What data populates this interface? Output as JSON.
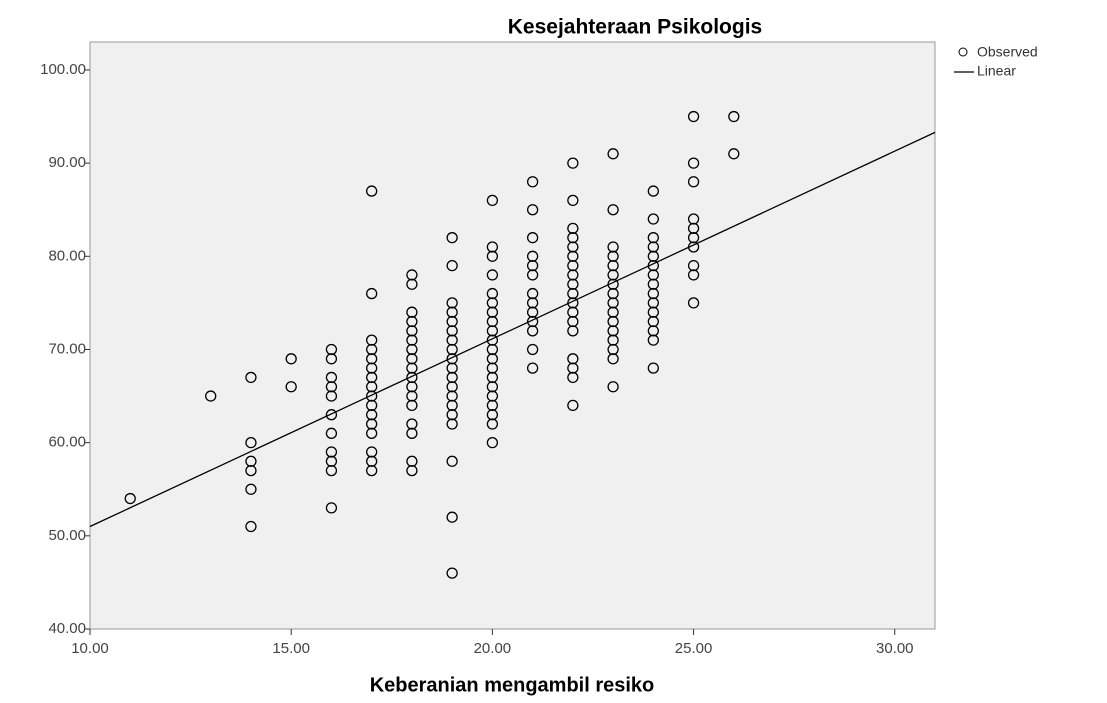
{
  "chart_data": {
    "type": "scatter",
    "title": "Kesejahteraan Psikologis",
    "x_label": "Keberanian mengambil resiko",
    "xlim": [
      10,
      31
    ],
    "ylim": [
      40,
      103
    ],
    "xticks": [
      {
        "value": 10,
        "label": "10.00"
      },
      {
        "value": 15,
        "label": "15.00"
      },
      {
        "value": 20,
        "label": "20.00"
      },
      {
        "value": 25,
        "label": "25.00"
      },
      {
        "value": 30,
        "label": "30.00"
      }
    ],
    "yticks": [
      {
        "value": 40,
        "label": "40.00"
      },
      {
        "value": 50,
        "label": "50.00"
      },
      {
        "value": 60,
        "label": "60.00"
      },
      {
        "value": 70,
        "label": "70.00"
      },
      {
        "value": 80,
        "label": "80.00"
      },
      {
        "value": 90,
        "label": "90.00"
      },
      {
        "value": 100,
        "label": "100.00"
      }
    ],
    "legend": "top-right",
    "series": [
      {
        "name": "Observed",
        "color": "#000000",
        "x": [
          11,
          13,
          14,
          14,
          14,
          14,
          14,
          14,
          15,
          15,
          16,
          16,
          16,
          16,
          16,
          16,
          16,
          16,
          16,
          16,
          16,
          17,
          17,
          17,
          17,
          17,
          17,
          17,
          17,
          17,
          17,
          17,
          17,
          17,
          17,
          17,
          17,
          18,
          18,
          18,
          18,
          18,
          18,
          18,
          18,
          18,
          18,
          18,
          18,
          18,
          18,
          18,
          18,
          18,
          19,
          19,
          19,
          19,
          19,
          19,
          19,
          19,
          19,
          19,
          19,
          19,
          19,
          19,
          19,
          19,
          19,
          19,
          19,
          20,
          20,
          20,
          20,
          20,
          20,
          20,
          20,
          20,
          20,
          20,
          20,
          20,
          20,
          20,
          20,
          20,
          20,
          20,
          20,
          21,
          21,
          21,
          21,
          21,
          21,
          21,
          21,
          21,
          21,
          21,
          21,
          21,
          22,
          22,
          22,
          22,
          22,
          22,
          22,
          22,
          22,
          22,
          22,
          22,
          22,
          22,
          22,
          22,
          22,
          22,
          23,
          23,
          23,
          23,
          23,
          23,
          23,
          23,
          23,
          23,
          23,
          23,
          23,
          23,
          23,
          23,
          24,
          24,
          24,
          24,
          24,
          24,
          24,
          24,
          24,
          24,
          24,
          24,
          24,
          24,
          24,
          25,
          25,
          25,
          25,
          25,
          25,
          25,
          25,
          25,
          25,
          26,
          26
        ],
        "values": [
          54,
          65,
          67,
          60,
          58,
          57,
          55,
          51,
          69,
          66,
          70,
          69,
          67,
          66,
          65,
          63,
          61,
          59,
          58,
          57,
          53,
          87,
          76,
          71,
          70,
          69,
          68,
          67,
          66,
          65,
          64,
          63,
          62,
          61,
          59,
          58,
          57,
          78,
          77,
          74,
          73,
          72,
          71,
          70,
          69,
          68,
          67,
          66,
          65,
          64,
          62,
          61,
          58,
          57,
          82,
          79,
          75,
          74,
          73,
          72,
          71,
          70,
          69,
          68,
          67,
          66,
          65,
          64,
          63,
          62,
          58,
          52,
          46,
          86,
          81,
          80,
          78,
          76,
          75,
          74,
          73,
          72,
          71,
          70,
          69,
          68,
          67,
          66,
          65,
          64,
          63,
          62,
          60,
          88,
          85,
          82,
          80,
          79,
          78,
          76,
          75,
          74,
          73,
          72,
          70,
          68,
          90,
          86,
          83,
          82,
          81,
          80,
          79,
          78,
          77,
          76,
          75,
          74,
          73,
          72,
          69,
          68,
          67,
          64,
          91,
          85,
          81,
          80,
          79,
          78,
          77,
          76,
          75,
          74,
          73,
          72,
          71,
          70,
          69,
          66,
          87,
          84,
          82,
          81,
          80,
          79,
          78,
          77,
          76,
          75,
          74,
          73,
          72,
          71,
          68,
          95,
          90,
          88,
          84,
          83,
          82,
          81,
          79,
          78,
          75,
          95,
          91
        ]
      },
      {
        "name": "Linear",
        "color": "#000000",
        "x": [
          10,
          31
        ],
        "values": [
          51,
          93.3
        ]
      }
    ]
  }
}
